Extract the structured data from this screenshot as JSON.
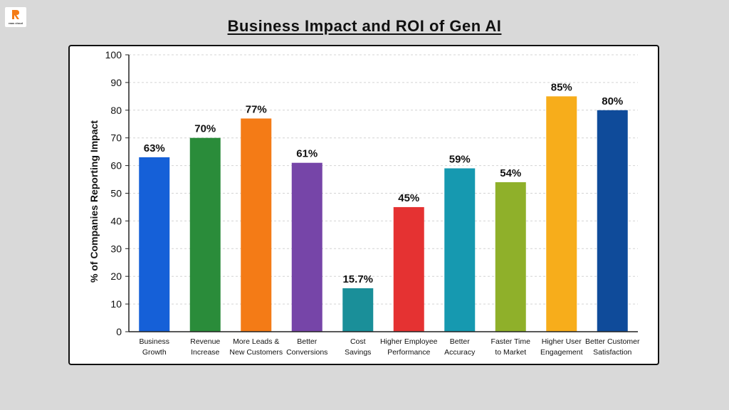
{
  "logo": {
    "text": "raas cloud"
  },
  "chart_data": {
    "type": "bar",
    "title": "Business Impact and ROI of Gen AI",
    "ylabel": "% of Companies Reporting Impact",
    "xlabel": "",
    "ylim": [
      0,
      100
    ],
    "yticks": [
      0,
      10,
      20,
      30,
      40,
      50,
      60,
      70,
      80,
      90,
      100
    ],
    "grid": true,
    "categories": [
      [
        "Business",
        "Growth"
      ],
      [
        "Revenue",
        "Increase"
      ],
      [
        "More Leads &",
        "New Customers"
      ],
      [
        "Better",
        "Conversions"
      ],
      [
        "Cost",
        "Savings"
      ],
      [
        "Higher Employee",
        "Performance"
      ],
      [
        "Better",
        "Accuracy"
      ],
      [
        "Faster Time",
        "to Market"
      ],
      [
        "Higher User",
        "Engagement"
      ],
      [
        "Better Customer",
        "Satisfaction"
      ]
    ],
    "values": [
      63,
      70,
      77,
      61,
      15.7,
      45,
      59,
      54,
      85,
      80
    ],
    "data_labels": [
      "63%",
      "70%",
      "77%",
      "61%",
      "15.7%",
      "45%",
      "59%",
      "54%",
      "85%",
      "80%"
    ],
    "colors": [
      "#1560d8",
      "#2a8c3a",
      "#f47b16",
      "#7645a8",
      "#1a8f99",
      "#e53232",
      "#1699b0",
      "#8fb02a",
      "#f7ad1b",
      "#0f4b9a"
    ]
  }
}
